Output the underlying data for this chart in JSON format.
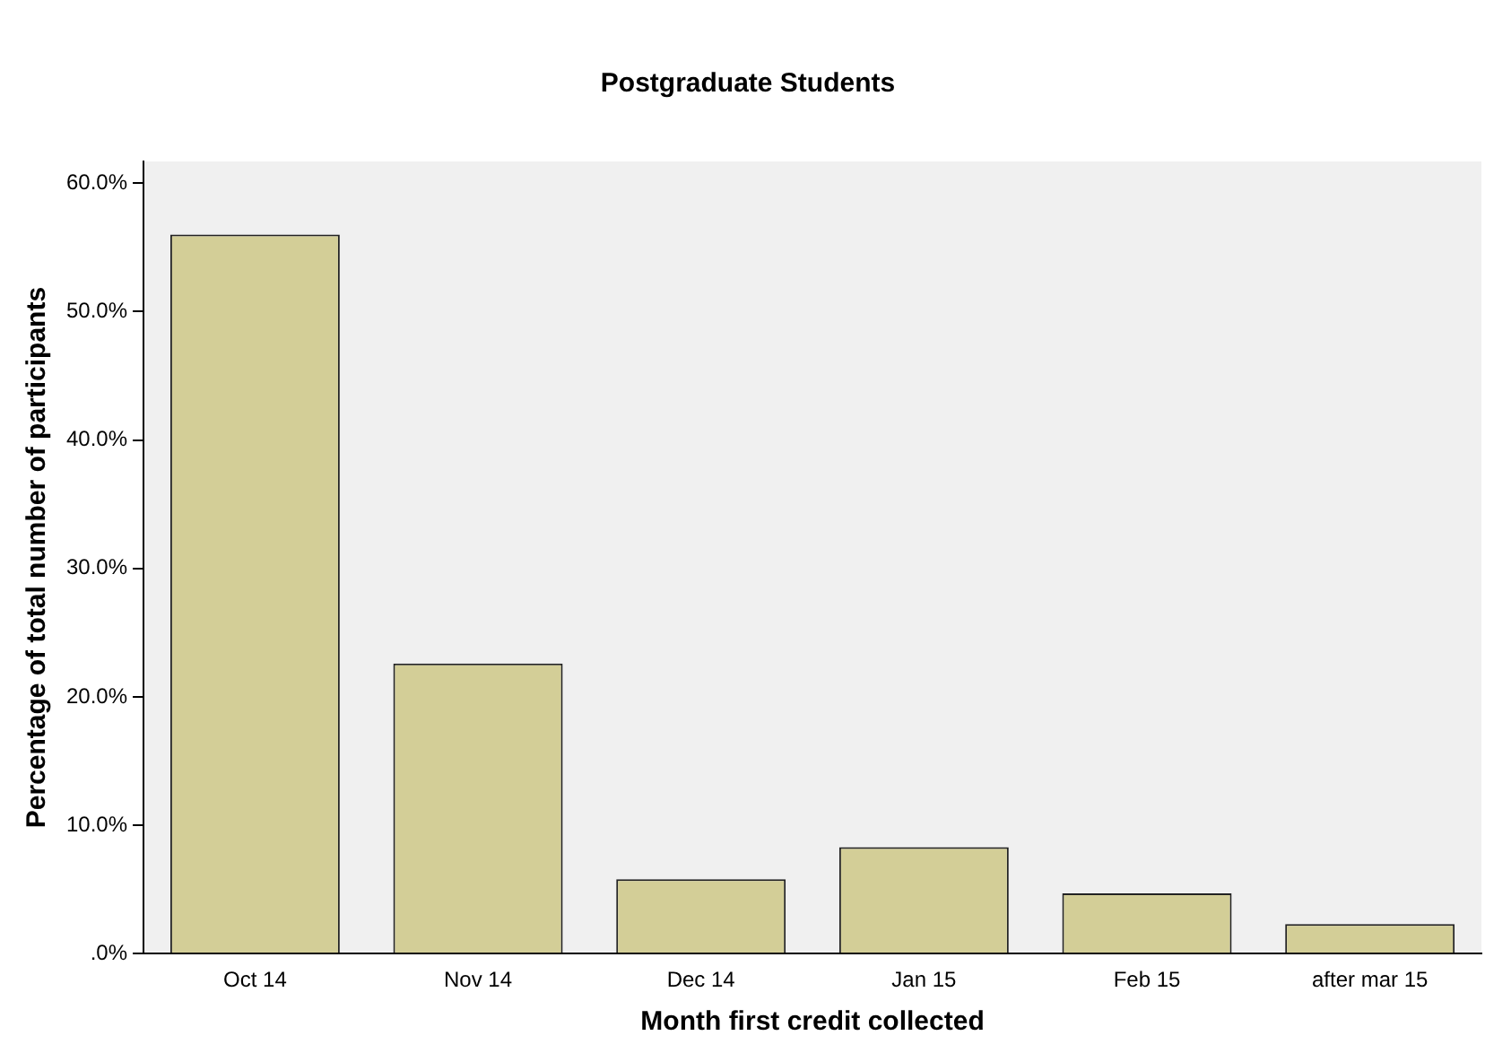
{
  "chart_data": {
    "type": "bar",
    "title": "Postgraduate Students",
    "xlabel": "Month first credit collected",
    "ylabel": "Percentage of total number of participants",
    "categories": [
      "Oct 14",
      "Nov 14",
      "Dec 14",
      "Jan 15",
      "Feb 15",
      "after mar 15"
    ],
    "values": [
      56.0,
      22.6,
      5.8,
      8.3,
      4.7,
      2.3
    ],
    "color": "#d3ce97",
    "ylim": [
      0,
      61.7
    ],
    "yticks": [
      {
        "value": 0,
        "label": ".0%"
      },
      {
        "value": 10,
        "label": "10.0%"
      },
      {
        "value": 20,
        "label": "20.0%"
      },
      {
        "value": 30,
        "label": "30.0%"
      },
      {
        "value": 40,
        "label": "40.0%"
      },
      {
        "value": 50,
        "label": "50.0%"
      },
      {
        "value": 60,
        "label": "60.0%"
      }
    ],
    "grid": false,
    "legend": false
  }
}
